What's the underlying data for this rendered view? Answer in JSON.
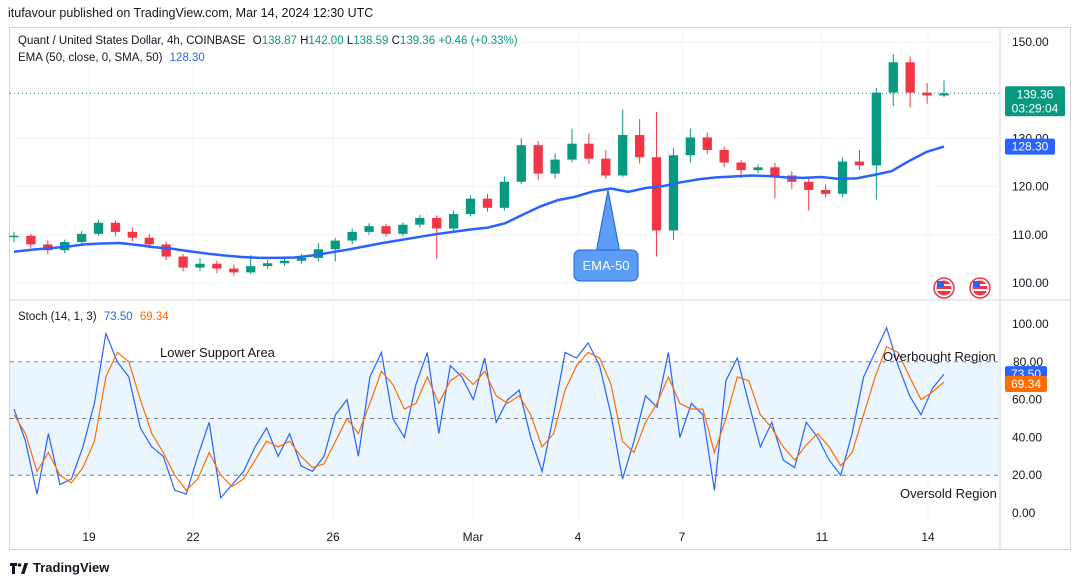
{
  "header": {
    "publisher_text": "itufavour published on TradingView.com, Mar 14, 2024 12:30 UTC"
  },
  "price_legend": {
    "symbol": "Quant / United States Dollar, 4h, COINBASE",
    "o_label": "O",
    "o_value": "138.87",
    "h_label": "H",
    "h_value": "142.00",
    "l_label": "L",
    "l_value": "138.59",
    "c_label": "C",
    "c_value": "139.36",
    "change": "+0.46 (+0.33%)"
  },
  "ema_legend": {
    "label": "EMA (50, close, 0, SMA, 50)",
    "value": "128.30"
  },
  "stoch_legend": {
    "label": "Stoch (14, 1, 3)",
    "k_value": "73.50",
    "d_value": "69.34"
  },
  "annotations": {
    "ema_callout": "EMA-50",
    "lower_support": "Lower Support Area",
    "overbought": "Overbought Region",
    "oversold": "Oversold Region"
  },
  "price_badges": {
    "last_price": "139.36",
    "countdown": "03:29:04",
    "ema_value": "128.30"
  },
  "stoch_badges": {
    "k": "73.50",
    "d": "69.34"
  },
  "footer": {
    "brand": "TradingView"
  },
  "colors": {
    "up": "#089981",
    "down": "#f23645",
    "ema": "#2962ff",
    "stoch_k": "#2962ff",
    "stoch_d": "#ff6d00",
    "band": "#e3f2fd",
    "bg": "#ffffff"
  },
  "chart_data": [
    {
      "type": "candlestick",
      "name": "Quant / United States Dollar, 4h, COINBASE",
      "x_ticks": [
        "19",
        "22",
        "26",
        "Mar",
        "4",
        "7",
        "11",
        "14"
      ],
      "y_ticks": [
        100,
        110,
        120,
        130,
        150
      ],
      "ylim": [
        97,
        153
      ],
      "grid": true,
      "last_close": 139.36,
      "ema_last": 128.3,
      "ema_series": [
        106.5,
        106.9,
        107.2,
        107.5,
        108.0,
        108.2,
        108.3,
        107.9,
        107.4,
        107.1,
        106.6,
        106.1,
        105.7,
        105.4,
        105.2,
        105.2,
        105.3,
        105.7,
        106.3,
        106.9,
        107.6,
        108.3,
        108.9,
        109.5,
        110.1,
        110.6,
        111.1,
        111.5,
        112.4,
        114.2,
        115.9,
        117.2,
        117.9,
        119.0,
        119.6,
        118.9,
        119.7,
        120.1,
        120.9,
        121.5,
        121.9,
        122.1,
        122.3,
        122.2,
        121.9,
        121.8,
        122.0,
        121.6,
        121.7,
        122.4,
        123.2,
        125.3,
        127.2,
        128.3
      ],
      "candles": [
        [
          109.5,
          109.8,
          110.6,
          108.4
        ],
        [
          109.8,
          108.0,
          110.2,
          107.3
        ],
        [
          108.0,
          106.8,
          108.8,
          106.0
        ],
        [
          106.8,
          108.5,
          109.0,
          106.2
        ],
        [
          108.5,
          110.2,
          110.8,
          108.0
        ],
        [
          110.2,
          112.5,
          113.1,
          109.8
        ],
        [
          112.5,
          110.6,
          113.0,
          109.8
        ],
        [
          110.6,
          109.4,
          111.5,
          108.6
        ],
        [
          109.4,
          108.0,
          110.2,
          107.2
        ],
        [
          108.0,
          105.5,
          108.6,
          104.8
        ],
        [
          105.5,
          103.2,
          106.0,
          102.4
        ],
        [
          103.2,
          104.0,
          105.2,
          102.5
        ],
        [
          104.0,
          103.0,
          104.6,
          102.0
        ],
        [
          103.0,
          102.2,
          103.8,
          101.5
        ],
        [
          102.2,
          103.5,
          105.8,
          101.8
        ],
        [
          103.5,
          104.1,
          104.8,
          103.0
        ],
        [
          104.1,
          104.6,
          105.0,
          103.6
        ],
        [
          104.6,
          105.2,
          106.0,
          104.0
        ],
        [
          105.2,
          107.0,
          108.3,
          104.5
        ],
        [
          107.0,
          108.8,
          109.4,
          104.5
        ],
        [
          108.8,
          110.6,
          111.3,
          108.0
        ],
        [
          110.6,
          111.8,
          112.4,
          110.0
        ],
        [
          111.8,
          110.2,
          112.3,
          109.6
        ],
        [
          110.2,
          112.1,
          112.6,
          109.7
        ],
        [
          112.1,
          113.5,
          114.1,
          111.5
        ],
        [
          113.5,
          111.3,
          114.0,
          105.0
        ],
        [
          111.3,
          114.3,
          115.0,
          110.8
        ],
        [
          114.3,
          117.5,
          118.2,
          113.8
        ],
        [
          117.5,
          115.6,
          118.5,
          114.8
        ],
        [
          115.6,
          121.0,
          122.1,
          115.0
        ],
        [
          121.0,
          128.6,
          130.0,
          120.5
        ],
        [
          128.6,
          122.7,
          129.5,
          121.4
        ],
        [
          122.7,
          125.6,
          126.9,
          121.7
        ],
        [
          125.6,
          128.9,
          132.0,
          125.0
        ],
        [
          128.9,
          125.8,
          131.0,
          124.7
        ],
        [
          125.8,
          122.3,
          127.6,
          121.6
        ],
        [
          122.3,
          130.7,
          136.0,
          122.0
        ],
        [
          130.7,
          126.1,
          134.0,
          124.8
        ],
        [
          126.1,
          110.9,
          135.5,
          105.5
        ],
        [
          110.9,
          126.5,
          128.0,
          109.0
        ],
        [
          126.5,
          130.2,
          132.0,
          125.0
        ],
        [
          130.2,
          127.6,
          131.2,
          126.8
        ],
        [
          127.6,
          125.0,
          128.3,
          124.0
        ],
        [
          125.0,
          123.4,
          125.5,
          121.8
        ],
        [
          123.4,
          124.0,
          124.6,
          122.8
        ],
        [
          124.0,
          122.3,
          124.9,
          117.6
        ],
        [
          122.3,
          121.0,
          123.2,
          119.5
        ],
        [
          121.0,
          119.3,
          121.9,
          115.0
        ],
        [
          119.3,
          118.5,
          120.5,
          117.7
        ],
        [
          118.5,
          125.2,
          126.1,
          117.8
        ],
        [
          125.2,
          124.4,
          127.6,
          123.5
        ],
        [
          124.4,
          139.5,
          140.5,
          117.3
        ],
        [
          139.5,
          145.8,
          147.5,
          136.7
        ],
        [
          145.8,
          139.5,
          147.0,
          136.5
        ],
        [
          139.5,
          138.9,
          141.5,
          137.2
        ],
        [
          138.9,
          139.36,
          142.0,
          138.59
        ]
      ]
    },
    {
      "type": "line",
      "name": "Stoch (14, 1, 3)",
      "y_ticks": [
        0.0,
        20.0,
        40.0,
        60.0,
        80.0,
        100.0
      ],
      "ylim": [
        -3,
        103
      ],
      "bands": {
        "upper": 80,
        "middle": 50,
        "lower": 20
      },
      "series": [
        {
          "name": "%K",
          "last": 73.5,
          "values": [
            55,
            38,
            10,
            42,
            15,
            18,
            35,
            58,
            95,
            80,
            72,
            45,
            35,
            30,
            12,
            10,
            30,
            48,
            8,
            15,
            22,
            35,
            45,
            30,
            42,
            25,
            22,
            30,
            52,
            60,
            30,
            72,
            85,
            50,
            40,
            68,
            85,
            42,
            78,
            72,
            60,
            82,
            48,
            60,
            65,
            40,
            22,
            52,
            85,
            82,
            90,
            78,
            52,
            18,
            38,
            62,
            56,
            85,
            40,
            58,
            52,
            12,
            70,
            82,
            58,
            35,
            48,
            28,
            24,
            48,
            40,
            28,
            20,
            42,
            72,
            85,
            98,
            78,
            62,
            52,
            66,
            73.5
          ]
        },
        {
          "name": "%D",
          "last": 69.34,
          "values": [
            52,
            42,
            22,
            32,
            20,
            16,
            24,
            38,
            72,
            85,
            80,
            60,
            42,
            32,
            20,
            12,
            18,
            32,
            20,
            14,
            18,
            28,
            38,
            35,
            38,
            30,
            24,
            26,
            38,
            50,
            42,
            58,
            75,
            68,
            55,
            58,
            72,
            58,
            70,
            74,
            68,
            75,
            62,
            58,
            62,
            52,
            35,
            42,
            65,
            78,
            85,
            82,
            68,
            38,
            32,
            48,
            58,
            72,
            58,
            55,
            55,
            32,
            50,
            72,
            70,
            52,
            45,
            35,
            28,
            36,
            42,
            35,
            25,
            32,
            52,
            72,
            88,
            85,
            72,
            60,
            64,
            69.34
          ]
        }
      ]
    }
  ]
}
